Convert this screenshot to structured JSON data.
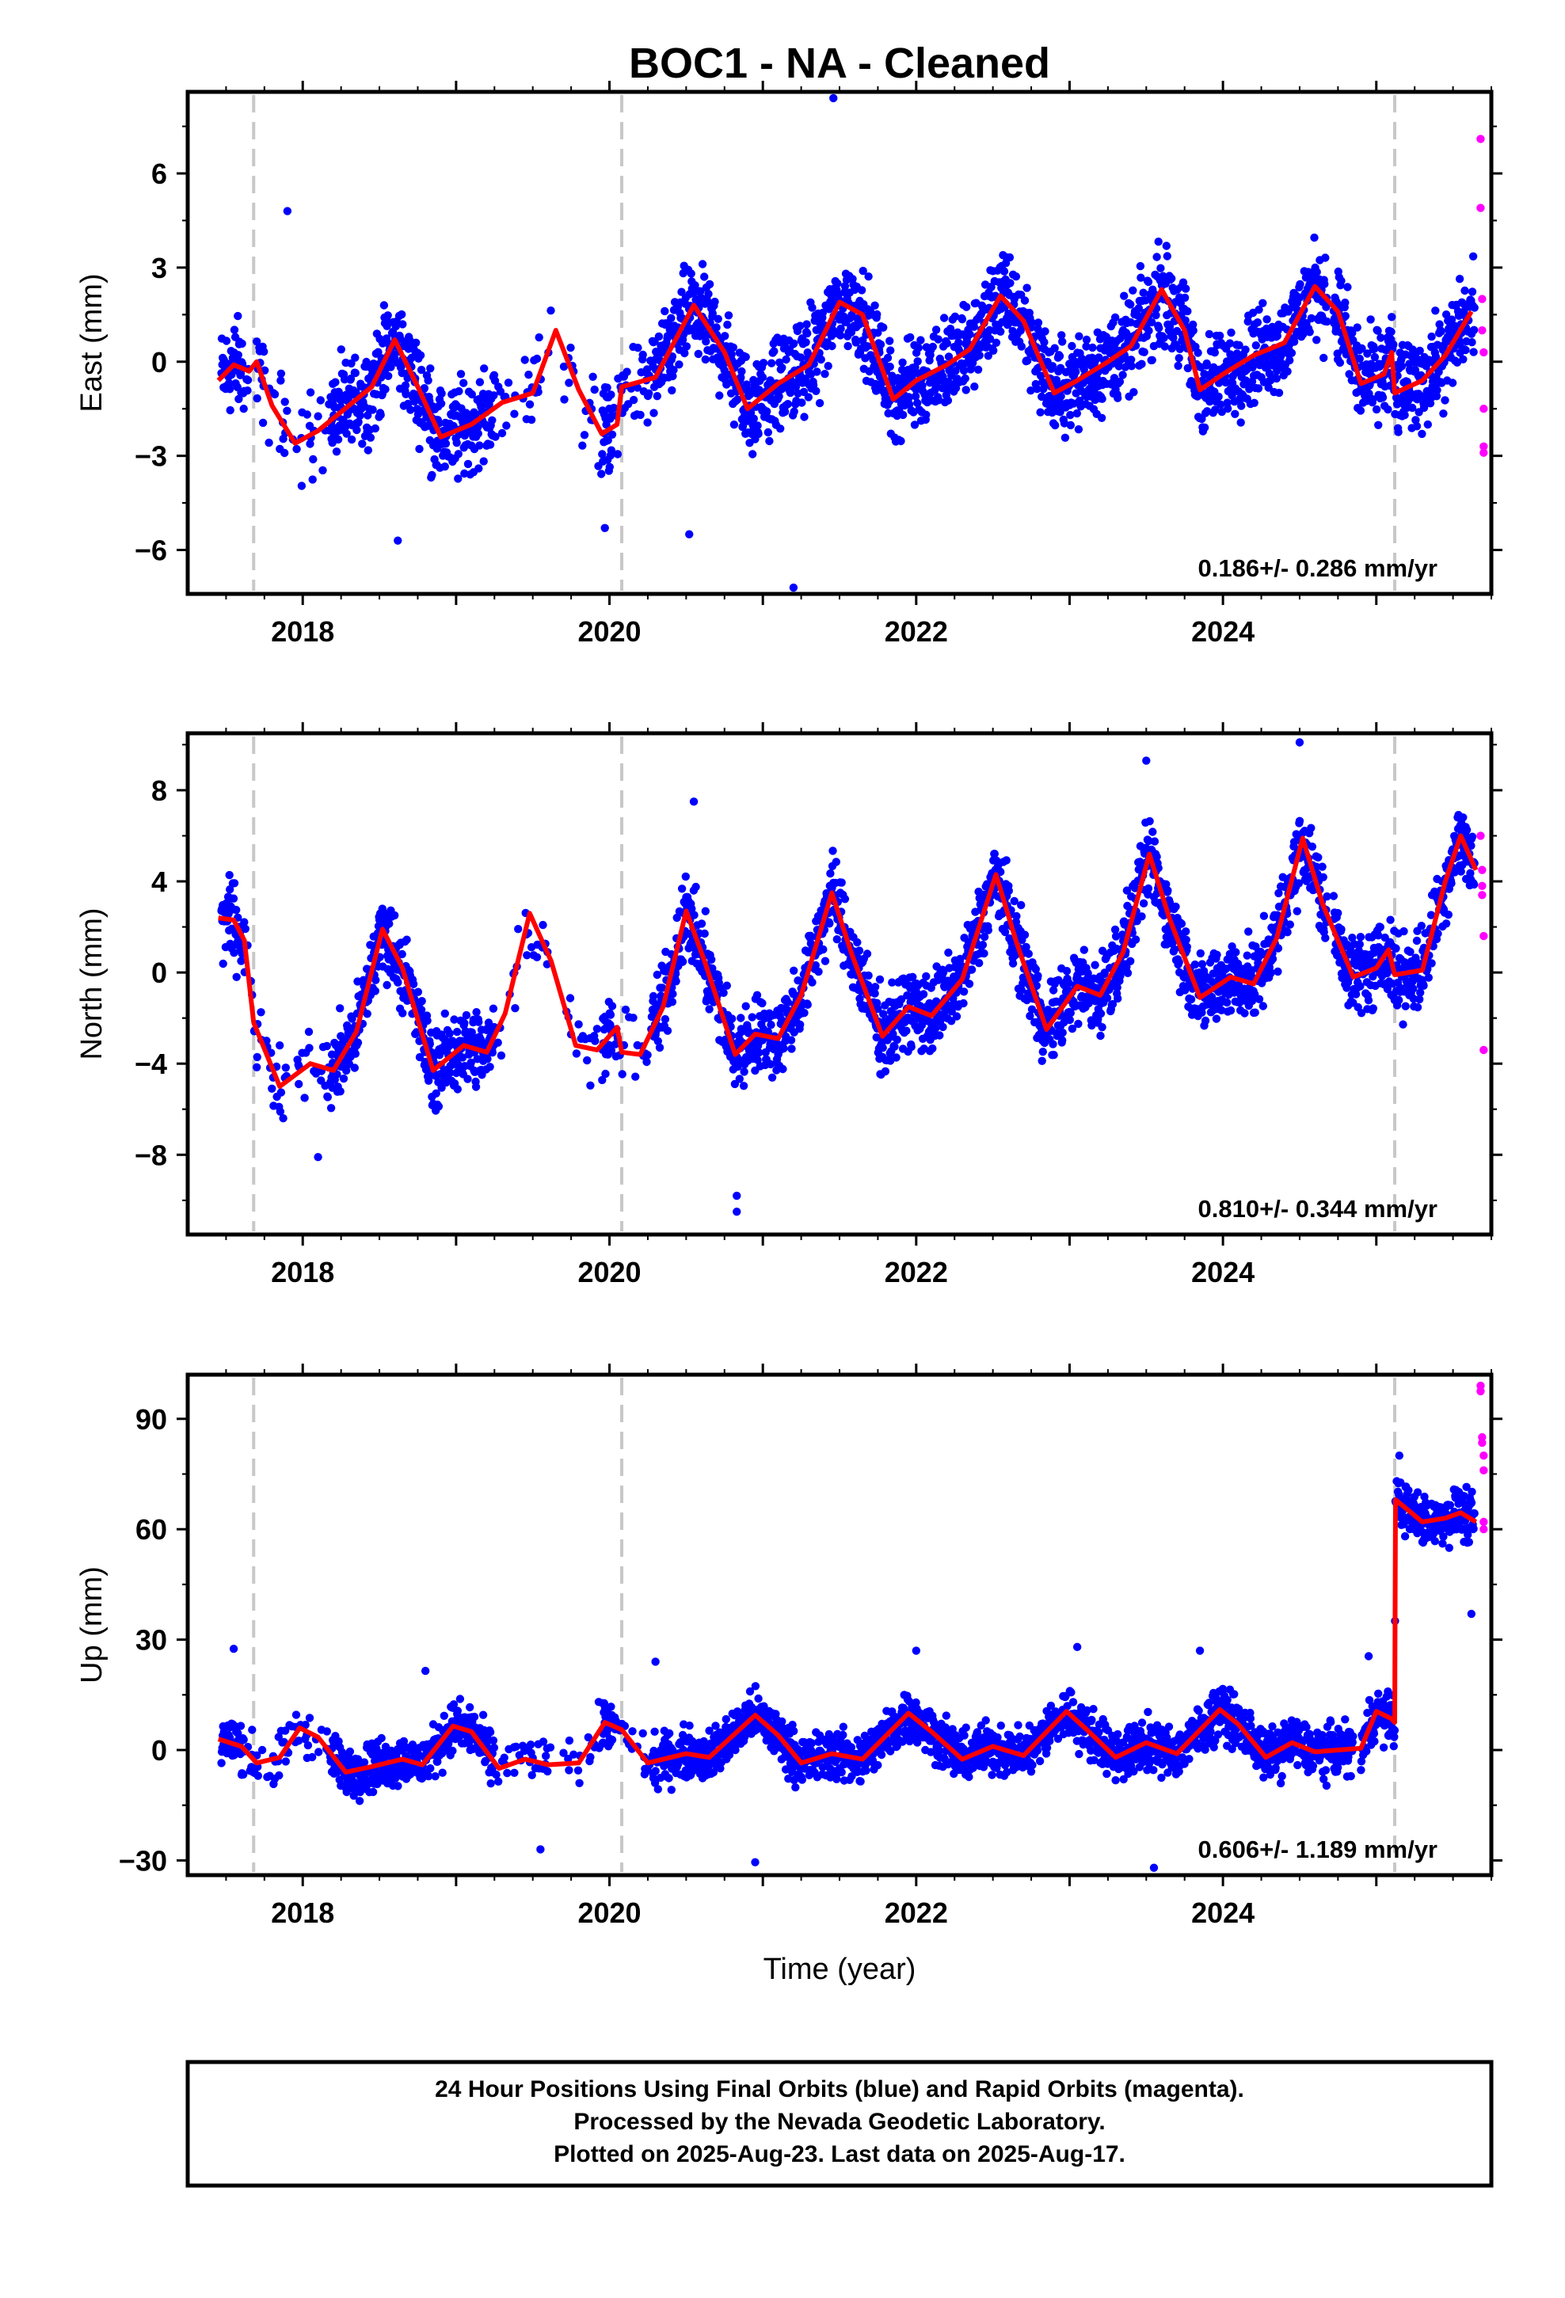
{
  "title": "BOC1  - NA - Cleaned",
  "xlabel": "Time (year)",
  "footer": {
    "line1": "24 Hour Positions Using Final Orbits (blue) and Rapid Orbits (magenta).",
    "line2": "Processed by the Nevada Geodetic Laboratory.",
    "line3": "Plotted on 2025-Aug-23. Last data on 2025-Aug-17."
  },
  "colors": {
    "final": "#0000ff",
    "rapid": "#ff00ff",
    "model": "#ff0000",
    "event_line": "#c8c8c8"
  },
  "chart_data": [
    {
      "type": "scatter",
      "ylabel": "East (mm)",
      "rate": "0.186+/- 0.286 mm/yr",
      "xlim": [
        2017.25,
        2025.75
      ],
      "ylim": [
        -7.4,
        8.6
      ],
      "yticks": [
        -6,
        -3,
        0,
        3,
        6
      ],
      "xticks": [
        2018,
        2020,
        2022,
        2024
      ],
      "event_lines": [
        2017.68,
        2020.08,
        2025.12
      ],
      "gaps": [
        [
          2019.62,
          2019.7
        ],
        [
          2024.68,
          2024.72
        ]
      ],
      "seasonal": {
        "amp": 1.2,
        "phase_year": 2018.6,
        "spread": 1.2
      },
      "model": [
        [
          2017.45,
          -0.6
        ],
        [
          2017.55,
          -0.1
        ],
        [
          2017.65,
          -0.3
        ],
        [
          2017.7,
          0.0
        ],
        [
          2017.8,
          -1.4
        ],
        [
          2017.95,
          -2.6
        ],
        [
          2018.1,
          -2.2
        ],
        [
          2018.3,
          -1.4
        ],
        [
          2018.45,
          -0.8
        ],
        [
          2018.6,
          0.7
        ],
        [
          2018.75,
          -0.8
        ],
        [
          2018.9,
          -2.4
        ],
        [
          2019.1,
          -2.0
        ],
        [
          2019.3,
          -1.3
        ],
        [
          2019.5,
          -1.0
        ],
        [
          2019.65,
          1.0
        ],
        [
          2019.8,
          -0.9
        ],
        [
          2019.95,
          -2.3
        ],
        [
          2020.05,
          -2.0
        ],
        [
          2020.08,
          -0.8
        ],
        [
          2020.3,
          -0.5
        ],
        [
          2020.55,
          1.8
        ],
        [
          2020.75,
          0.3
        ],
        [
          2020.9,
          -1.5
        ],
        [
          2021.1,
          -0.7
        ],
        [
          2021.3,
          -0.1
        ],
        [
          2021.5,
          1.9
        ],
        [
          2021.65,
          1.5
        ],
        [
          2021.85,
          -1.2
        ],
        [
          2022.0,
          -0.6
        ],
        [
          2022.2,
          -0.1
        ],
        [
          2022.35,
          0.4
        ],
        [
          2022.55,
          2.1
        ],
        [
          2022.7,
          1.3
        ],
        [
          2022.9,
          -1.0
        ],
        [
          2023.05,
          -0.6
        ],
        [
          2023.25,
          0.0
        ],
        [
          2023.4,
          0.5
        ],
        [
          2023.6,
          2.3
        ],
        [
          2023.75,
          1.0
        ],
        [
          2023.85,
          -0.9
        ],
        [
          2024.0,
          -0.4
        ],
        [
          2024.2,
          0.2
        ],
        [
          2024.4,
          0.6
        ],
        [
          2024.6,
          2.4
        ],
        [
          2024.75,
          1.6
        ],
        [
          2024.9,
          -0.7
        ],
        [
          2025.05,
          -0.4
        ],
        [
          2025.1,
          0.3
        ],
        [
          2025.12,
          -1.0
        ],
        [
          2025.3,
          -0.6
        ],
        [
          2025.45,
          0.2
        ],
        [
          2025.62,
          1.6
        ]
      ],
      "rapid": [
        [
          2025.68,
          7.1
        ],
        [
          2025.68,
          4.9
        ],
        [
          2025.69,
          2.0
        ],
        [
          2025.69,
          1.0
        ],
        [
          2025.7,
          0.3
        ],
        [
          2025.7,
          -1.5
        ],
        [
          2025.7,
          -2.7
        ],
        [
          2025.7,
          -2.9
        ]
      ],
      "outliers": [
        [
          2021.46,
          8.4
        ],
        [
          2017.9,
          4.8
        ],
        [
          2021.2,
          -7.2
        ],
        [
          2019.97,
          -5.3
        ],
        [
          2020.52,
          -5.5
        ],
        [
          2018.62,
          -5.7
        ]
      ]
    },
    {
      "type": "scatter",
      "ylabel": "North (mm)",
      "rate": "0.810+/- 0.344 mm/yr",
      "xlim": [
        2017.25,
        2025.75
      ],
      "ylim": [
        -11.5,
        10.5
      ],
      "yticks": [
        -8,
        -4,
        0,
        4,
        8
      ],
      "xticks": [
        2018,
        2020,
        2022,
        2024
      ],
      "event_lines": [
        2017.68,
        2020.08,
        2025.12
      ],
      "gaps": [
        [
          2019.62,
          2019.7
        ],
        [
          2024.68,
          2024.72
        ]
      ],
      "seasonal": {
        "amp": 2.2,
        "phase_year": 2018.5,
        "spread": 1.4
      },
      "model": [
        [
          2017.45,
          2.4
        ],
        [
          2017.55,
          2.3
        ],
        [
          2017.62,
          1.4
        ],
        [
          2017.68,
          -2.2
        ],
        [
          2017.85,
          -5.0
        ],
        [
          2018.05,
          -4.0
        ],
        [
          2018.2,
          -4.3
        ],
        [
          2018.35,
          -2.6
        ],
        [
          2018.52,
          1.9
        ],
        [
          2018.65,
          0.2
        ],
        [
          2018.85,
          -4.3
        ],
        [
          2019.05,
          -3.2
        ],
        [
          2019.2,
          -3.5
        ],
        [
          2019.32,
          -1.8
        ],
        [
          2019.48,
          2.6
        ],
        [
          2019.62,
          0.5
        ],
        [
          2019.78,
          -3.2
        ],
        [
          2019.92,
          -3.4
        ],
        [
          2020.05,
          -2.4
        ],
        [
          2020.08,
          -3.5
        ],
        [
          2020.2,
          -3.6
        ],
        [
          2020.35,
          -1.5
        ],
        [
          2020.5,
          2.7
        ],
        [
          2020.62,
          0.5
        ],
        [
          2020.82,
          -3.6
        ],
        [
          2020.95,
          -2.7
        ],
        [
          2021.1,
          -2.9
        ],
        [
          2021.25,
          -1.0
        ],
        [
          2021.45,
          3.5
        ],
        [
          2021.58,
          0.8
        ],
        [
          2021.78,
          -2.8
        ],
        [
          2021.95,
          -1.5
        ],
        [
          2022.1,
          -1.9
        ],
        [
          2022.3,
          -0.3
        ],
        [
          2022.52,
          4.3
        ],
        [
          2022.65,
          1.4
        ],
        [
          2022.85,
          -2.5
        ],
        [
          2023.05,
          -0.6
        ],
        [
          2023.2,
          -1.0
        ],
        [
          2023.35,
          0.9
        ],
        [
          2023.52,
          5.2
        ],
        [
          2023.65,
          2.4
        ],
        [
          2023.85,
          -1.1
        ],
        [
          2024.05,
          -0.2
        ],
        [
          2024.2,
          -0.5
        ],
        [
          2024.35,
          1.5
        ],
        [
          2024.52,
          5.9
        ],
        [
          2024.65,
          3.0
        ],
        [
          2024.85,
          -0.2
        ],
        [
          2025.0,
          0.2
        ],
        [
          2025.08,
          1.0
        ],
        [
          2025.12,
          -0.1
        ],
        [
          2025.3,
          0.1
        ],
        [
          2025.45,
          4.0
        ],
        [
          2025.55,
          6.0
        ],
        [
          2025.65,
          4.5
        ]
      ],
      "rapid": [
        [
          2025.68,
          6.0
        ],
        [
          2025.69,
          4.5
        ],
        [
          2025.69,
          3.8
        ],
        [
          2025.69,
          3.4
        ],
        [
          2025.7,
          1.6
        ],
        [
          2025.7,
          -3.4
        ]
      ],
      "outliers": [
        [
          2020.83,
          -10.5
        ],
        [
          2020.83,
          -9.8
        ],
        [
          2024.5,
          10.1
        ],
        [
          2023.5,
          9.3
        ],
        [
          2017.85,
          -3.2
        ],
        [
          2018.1,
          -8.1
        ],
        [
          2020.55,
          7.5
        ]
      ]
    },
    {
      "type": "scatter",
      "ylabel": "Up (mm)",
      "rate": "0.606+/- 1.189 mm/yr",
      "xlim": [
        2017.25,
        2025.75
      ],
      "ylim": [
        -34,
        102
      ],
      "yticks": [
        -30,
        0,
        30,
        60,
        90
      ],
      "xticks": [
        2018,
        2020,
        2022,
        2024
      ],
      "event_lines": [
        2017.68,
        2020.08,
        2025.12
      ],
      "gaps": [
        [
          2019.62,
          2019.7
        ],
        [
          2024.85,
          2024.9
        ]
      ],
      "seasonal": {
        "amp": 3.5,
        "phase_year": 2018.95,
        "spread": 5.5
      },
      "step": {
        "year": 2025.12,
        "size": 58
      },
      "model": [
        [
          2017.45,
          3.0
        ],
        [
          2017.6,
          1.0
        ],
        [
          2017.7,
          -3.5
        ],
        [
          2017.85,
          -2.0
        ],
        [
          2017.98,
          6.0
        ],
        [
          2018.1,
          3.5
        ],
        [
          2018.28,
          -6.0
        ],
        [
          2018.45,
          -4.5
        ],
        [
          2018.65,
          -2.5
        ],
        [
          2018.78,
          -4.0
        ],
        [
          2018.98,
          6.5
        ],
        [
          2019.1,
          5.0
        ],
        [
          2019.28,
          -5.0
        ],
        [
          2019.45,
          -2.5
        ],
        [
          2019.6,
          -4.0
        ],
        [
          2019.8,
          -3.5
        ],
        [
          2019.97,
          7.5
        ],
        [
          2020.08,
          5.5
        ],
        [
          2020.25,
          -3.5
        ],
        [
          2020.5,
          -1.0
        ],
        [
          2020.65,
          -2.0
        ],
        [
          2020.95,
          9.5
        ],
        [
          2021.1,
          4.0
        ],
        [
          2021.25,
          -3.5
        ],
        [
          2021.45,
          -1.0
        ],
        [
          2021.65,
          -2.5
        ],
        [
          2021.95,
          10.0
        ],
        [
          2022.1,
          5.0
        ],
        [
          2022.3,
          -2.5
        ],
        [
          2022.5,
          1.0
        ],
        [
          2022.7,
          -1.5
        ],
        [
          2022.98,
          10.5
        ],
        [
          2023.1,
          6.0
        ],
        [
          2023.3,
          -2.0
        ],
        [
          2023.5,
          2.0
        ],
        [
          2023.7,
          -1.0
        ],
        [
          2023.98,
          11.0
        ],
        [
          2024.1,
          7.0
        ],
        [
          2024.28,
          -2.0
        ],
        [
          2024.45,
          2.0
        ],
        [
          2024.6,
          -0.5
        ],
        [
          2024.9,
          0.5
        ],
        [
          2025.0,
          10.5
        ],
        [
          2025.1,
          8.5
        ],
        [
          2025.12,
          7.5
        ],
        [
          2025.125,
          68.0
        ],
        [
          2025.3,
          62.0
        ],
        [
          2025.45,
          63.0
        ],
        [
          2025.55,
          64.5
        ],
        [
          2025.65,
          62.0
        ]
      ],
      "rapid": [
        [
          2025.68,
          99.0
        ],
        [
          2025.68,
          97.5
        ],
        [
          2025.69,
          85.0
        ],
        [
          2025.69,
          83.5
        ],
        [
          2025.7,
          80.0
        ],
        [
          2025.7,
          76.0
        ],
        [
          2025.7,
          62.0
        ],
        [
          2025.7,
          60.0
        ]
      ],
      "outliers": [
        [
          2017.55,
          27.5
        ],
        [
          2018.8,
          21.5
        ],
        [
          2020.3,
          24.0
        ],
        [
          2022.0,
          27.0
        ],
        [
          2023.05,
          28.0
        ],
        [
          2023.85,
          27.0
        ],
        [
          2025.15,
          80.0
        ],
        [
          2025.62,
          37.0
        ],
        [
          2019.55,
          -27.0
        ],
        [
          2020.95,
          -30.5
        ],
        [
          2023.55,
          -32.0
        ],
        [
          2024.95,
          25.5
        ]
      ]
    }
  ]
}
